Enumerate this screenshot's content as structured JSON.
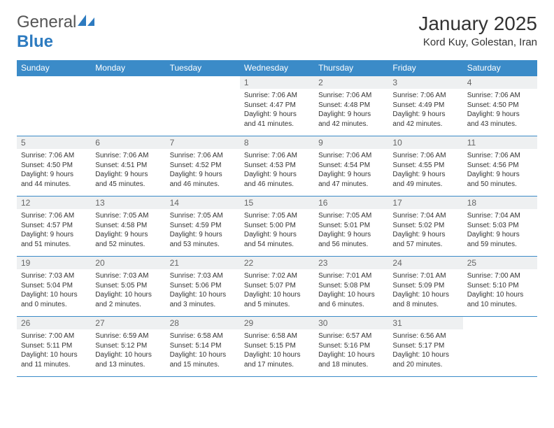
{
  "logo": {
    "text_general": "General",
    "text_blue": "Blue"
  },
  "title": "January 2025",
  "location": "Kord Kuy, Golestan, Iran",
  "colors": {
    "header_bg": "#3b8bc8",
    "header_fg": "#ffffff",
    "daynum_bg": "#eef0f1",
    "daynum_fg": "#666666",
    "border": "#3b8bc8",
    "logo_blue": "#2d7bc0",
    "text": "#333333",
    "page_bg": "#ffffff"
  },
  "weekdays": [
    "Sunday",
    "Monday",
    "Tuesday",
    "Wednesday",
    "Thursday",
    "Friday",
    "Saturday"
  ],
  "first_weekday_index": 3,
  "days": [
    {
      "n": 1,
      "sunrise": "7:06 AM",
      "sunset": "4:47 PM",
      "daylight": "9 hours and 41 minutes."
    },
    {
      "n": 2,
      "sunrise": "7:06 AM",
      "sunset": "4:48 PM",
      "daylight": "9 hours and 42 minutes."
    },
    {
      "n": 3,
      "sunrise": "7:06 AM",
      "sunset": "4:49 PM",
      "daylight": "9 hours and 42 minutes."
    },
    {
      "n": 4,
      "sunrise": "7:06 AM",
      "sunset": "4:50 PM",
      "daylight": "9 hours and 43 minutes."
    },
    {
      "n": 5,
      "sunrise": "7:06 AM",
      "sunset": "4:50 PM",
      "daylight": "9 hours and 44 minutes."
    },
    {
      "n": 6,
      "sunrise": "7:06 AM",
      "sunset": "4:51 PM",
      "daylight": "9 hours and 45 minutes."
    },
    {
      "n": 7,
      "sunrise": "7:06 AM",
      "sunset": "4:52 PM",
      "daylight": "9 hours and 46 minutes."
    },
    {
      "n": 8,
      "sunrise": "7:06 AM",
      "sunset": "4:53 PM",
      "daylight": "9 hours and 46 minutes."
    },
    {
      "n": 9,
      "sunrise": "7:06 AM",
      "sunset": "4:54 PM",
      "daylight": "9 hours and 47 minutes."
    },
    {
      "n": 10,
      "sunrise": "7:06 AM",
      "sunset": "4:55 PM",
      "daylight": "9 hours and 49 minutes."
    },
    {
      "n": 11,
      "sunrise": "7:06 AM",
      "sunset": "4:56 PM",
      "daylight": "9 hours and 50 minutes."
    },
    {
      "n": 12,
      "sunrise": "7:06 AM",
      "sunset": "4:57 PM",
      "daylight": "9 hours and 51 minutes."
    },
    {
      "n": 13,
      "sunrise": "7:05 AM",
      "sunset": "4:58 PM",
      "daylight": "9 hours and 52 minutes."
    },
    {
      "n": 14,
      "sunrise": "7:05 AM",
      "sunset": "4:59 PM",
      "daylight": "9 hours and 53 minutes."
    },
    {
      "n": 15,
      "sunrise": "7:05 AM",
      "sunset": "5:00 PM",
      "daylight": "9 hours and 54 minutes."
    },
    {
      "n": 16,
      "sunrise": "7:05 AM",
      "sunset": "5:01 PM",
      "daylight": "9 hours and 56 minutes."
    },
    {
      "n": 17,
      "sunrise": "7:04 AM",
      "sunset": "5:02 PM",
      "daylight": "9 hours and 57 minutes."
    },
    {
      "n": 18,
      "sunrise": "7:04 AM",
      "sunset": "5:03 PM",
      "daylight": "9 hours and 59 minutes."
    },
    {
      "n": 19,
      "sunrise": "7:03 AM",
      "sunset": "5:04 PM",
      "daylight": "10 hours and 0 minutes."
    },
    {
      "n": 20,
      "sunrise": "7:03 AM",
      "sunset": "5:05 PM",
      "daylight": "10 hours and 2 minutes."
    },
    {
      "n": 21,
      "sunrise": "7:03 AM",
      "sunset": "5:06 PM",
      "daylight": "10 hours and 3 minutes."
    },
    {
      "n": 22,
      "sunrise": "7:02 AM",
      "sunset": "5:07 PM",
      "daylight": "10 hours and 5 minutes."
    },
    {
      "n": 23,
      "sunrise": "7:01 AM",
      "sunset": "5:08 PM",
      "daylight": "10 hours and 6 minutes."
    },
    {
      "n": 24,
      "sunrise": "7:01 AM",
      "sunset": "5:09 PM",
      "daylight": "10 hours and 8 minutes."
    },
    {
      "n": 25,
      "sunrise": "7:00 AM",
      "sunset": "5:10 PM",
      "daylight": "10 hours and 10 minutes."
    },
    {
      "n": 26,
      "sunrise": "7:00 AM",
      "sunset": "5:11 PM",
      "daylight": "10 hours and 11 minutes."
    },
    {
      "n": 27,
      "sunrise": "6:59 AM",
      "sunset": "5:12 PM",
      "daylight": "10 hours and 13 minutes."
    },
    {
      "n": 28,
      "sunrise": "6:58 AM",
      "sunset": "5:14 PM",
      "daylight": "10 hours and 15 minutes."
    },
    {
      "n": 29,
      "sunrise": "6:58 AM",
      "sunset": "5:15 PM",
      "daylight": "10 hours and 17 minutes."
    },
    {
      "n": 30,
      "sunrise": "6:57 AM",
      "sunset": "5:16 PM",
      "daylight": "10 hours and 18 minutes."
    },
    {
      "n": 31,
      "sunrise": "6:56 AM",
      "sunset": "5:17 PM",
      "daylight": "10 hours and 20 minutes."
    }
  ],
  "labels": {
    "sunrise": "Sunrise:",
    "sunset": "Sunset:",
    "daylight": "Daylight:"
  }
}
